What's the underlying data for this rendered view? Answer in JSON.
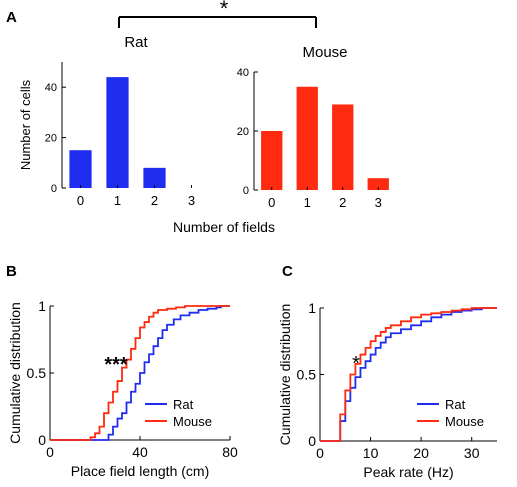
{
  "panel_labels": [
    "A",
    "B",
    "C"
  ],
  "significance": {
    "a_bracket": "*",
    "b": "***",
    "c": "*"
  },
  "colors": {
    "rat": "#1f2df0",
    "mouse": "#ff2a10"
  },
  "chart_data": [
    {
      "id": "A-rat",
      "type": "bar",
      "title": "Rat",
      "categories": [
        "0",
        "1",
        "2",
        "3"
      ],
      "values": [
        15,
        44,
        8,
        0
      ],
      "ylabel": "Number of cells",
      "ylim": [
        0,
        50
      ],
      "yticks": [
        "0",
        "20",
        "40"
      ],
      "color": "#1f2df0"
    },
    {
      "id": "A-mouse",
      "type": "bar",
      "title": "Mouse",
      "categories": [
        "0",
        "1",
        "2",
        "3"
      ],
      "values": [
        20,
        35,
        29,
        4
      ],
      "ylim": [
        0,
        40
      ],
      "yticks": [
        "0",
        "20",
        "40"
      ],
      "color": "#ff2a10"
    },
    {
      "id": "A-shared",
      "xlabel": "Number of fields"
    },
    {
      "id": "B",
      "type": "line",
      "xlabel": "Place field length (cm)",
      "ylabel": "Cumulative distribution",
      "xlim": [
        0,
        80
      ],
      "ylim": [
        0,
        1
      ],
      "xticks": [
        "0",
        "40",
        "80"
      ],
      "yticks": [
        "0",
        "0.5",
        "1"
      ],
      "legend": "bottom-right",
      "series": [
        {
          "name": "Rat",
          "color": "#1f2df0",
          "x": [
            20,
            26,
            28,
            30,
            32,
            34,
            36,
            38,
            40,
            42,
            44,
            46,
            48,
            50,
            52,
            55,
            58,
            62,
            66,
            70,
            74,
            76
          ],
          "y": [
            0,
            0.04,
            0.1,
            0.16,
            0.2,
            0.28,
            0.36,
            0.42,
            0.5,
            0.58,
            0.64,
            0.7,
            0.76,
            0.82,
            0.86,
            0.9,
            0.93,
            0.95,
            0.97,
            0.98,
            0.99,
            1.0
          ]
        },
        {
          "name": "Mouse",
          "color": "#ff2a10",
          "x": [
            14,
            18,
            20,
            22,
            24,
            26,
            28,
            30,
            32,
            34,
            36,
            38,
            40,
            42,
            44,
            46,
            48,
            52,
            56,
            60,
            64
          ],
          "y": [
            0,
            0.02,
            0.05,
            0.1,
            0.2,
            0.28,
            0.36,
            0.44,
            0.54,
            0.6,
            0.68,
            0.76,
            0.84,
            0.88,
            0.92,
            0.95,
            0.97,
            0.98,
            0.99,
            1.0,
            1.0
          ]
        }
      ]
    },
    {
      "id": "C",
      "type": "line",
      "xlabel": "Peak rate (Hz)",
      "ylabel": "Cumulative distribution",
      "xlim": [
        0,
        35
      ],
      "ylim": [
        0,
        1
      ],
      "xticks": [
        "0",
        "10",
        "20",
        "30"
      ],
      "yticks": [
        "0",
        "0.5",
        "1"
      ],
      "legend": "bottom-right",
      "series": [
        {
          "name": "Rat",
          "color": "#1f2df0",
          "x": [
            3,
            4,
            5,
            6,
            7,
            8,
            9,
            10,
            11,
            12,
            13,
            14,
            16,
            18,
            20,
            22,
            24,
            26,
            28,
            30,
            32,
            34
          ],
          "y": [
            0,
            0.15,
            0.3,
            0.4,
            0.48,
            0.55,
            0.6,
            0.65,
            0.7,
            0.74,
            0.78,
            0.81,
            0.84,
            0.87,
            0.9,
            0.93,
            0.95,
            0.97,
            0.98,
            0.99,
            1.0,
            1.0
          ]
        },
        {
          "name": "Mouse",
          "color": "#ff2a10",
          "x": [
            3,
            4,
            5,
            6,
            7,
            8,
            9,
            10,
            11,
            12,
            13,
            14,
            16,
            18,
            20,
            22,
            24,
            26,
            28,
            30,
            32,
            34
          ],
          "y": [
            0,
            0.2,
            0.38,
            0.5,
            0.58,
            0.65,
            0.7,
            0.75,
            0.79,
            0.82,
            0.85,
            0.87,
            0.9,
            0.93,
            0.95,
            0.96,
            0.97,
            0.98,
            0.99,
            1.0,
            1.0,
            1.0
          ]
        }
      ]
    }
  ]
}
